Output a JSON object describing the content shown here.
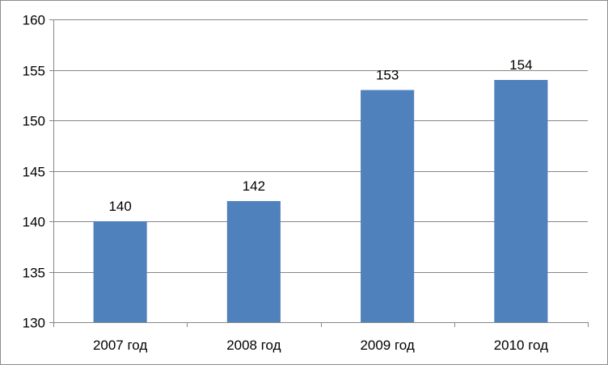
{
  "chart_data": {
    "type": "bar",
    "categories": [
      "2007 год",
      "2008 год",
      "2009 год",
      "2010 год"
    ],
    "values": [
      140,
      142,
      153,
      154
    ],
    "data_labels": [
      "140",
      "142",
      "153",
      "154"
    ],
    "title": "",
    "xlabel": "",
    "ylabel": "",
    "ylim": [
      130,
      160
    ],
    "y_ticks": [
      130,
      135,
      140,
      145,
      150,
      155,
      160
    ],
    "y_tick_labels": [
      "130",
      "135",
      "140",
      "145",
      "150",
      "155",
      "160"
    ],
    "grid": true,
    "legend": "none",
    "bar_color": "#4F81BD",
    "grid_color": "#868686"
  }
}
